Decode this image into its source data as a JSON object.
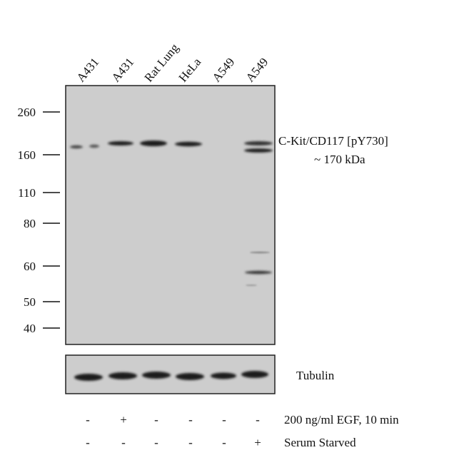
{
  "lanes": [
    "A431",
    "A431",
    "Rat Lung",
    "HeLa",
    "A549",
    "A549"
  ],
  "markers": [
    260,
    160,
    110,
    80,
    60,
    50,
    40
  ],
  "annotation": {
    "target": "C-Kit/CD117  [pY730]",
    "size": "~  170 kDa"
  },
  "loading_control": "Tubulin",
  "treatments": [
    {
      "label": "200 ng/ml EGF, 10 min",
      "signs": [
        "-",
        "+",
        "-",
        "-",
        "-",
        "-"
      ]
    },
    {
      "label": "Serum Starved",
      "signs": [
        "-",
        "-",
        "-",
        "-",
        "-",
        "+"
      ]
    }
  ]
}
